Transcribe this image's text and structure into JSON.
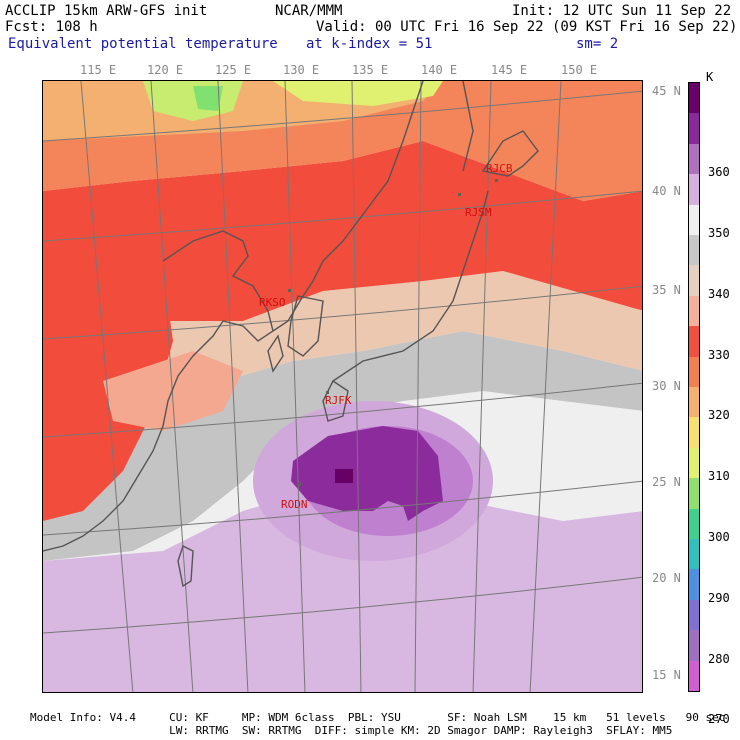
{
  "header": {
    "model": "ACCLIP 15km ARW-GFS init",
    "org": "NCAR/MMM",
    "init": "Init: 12 UTC Sun 11 Sep 22",
    "fcst": "Fcst: 108 h",
    "valid": "Valid: 00 UTC Fri 16 Sep 22 (09 KST Fri 16 Sep 22)",
    "field": "Equivalent potential temperature",
    "level": "at k-index = 51",
    "smooth": "sm= 2"
  },
  "lon_labels": [
    "115 E",
    "120 E",
    "125 E",
    "130 E",
    "135 E",
    "140 E",
    "145 E",
    "150 E"
  ],
  "lat_labels": [
    "45 N",
    "40 N",
    "35 N",
    "30 N",
    "25 N",
    "20 N",
    "15 N"
  ],
  "stations": [
    "RJCB",
    "RJSM",
    "RKSO",
    "RJFK",
    "RODN"
  ],
  "colorbar": {
    "unit": "K",
    "ticks": [
      "360",
      "350",
      "340",
      "330",
      "320",
      "310",
      "300",
      "290",
      "280",
      "270"
    ],
    "colors": [
      "#6a006a",
      "#8a2a9a",
      "#b070c0",
      "#d8b0e0",
      "#f0f0f0",
      "#c8c8c8",
      "#e8d0c0",
      "#f4b09a",
      "#f05040",
      "#f08050",
      "#f4b070",
      "#f8e070",
      "#e0f070",
      "#90e070",
      "#40d090",
      "#30c0c0",
      "#5090e0",
      "#8070d0",
      "#a070c0",
      "#d060d0"
    ]
  },
  "footer": {
    "line1": "Model Info: V4.4     CU: KF     MP: WDM 6class  PBL: YSU       SF: Noah LSM    15 km   51 levels   90 sec",
    "line2": "                     LW: RRTMG  SW: RRTMG  DIFF: simple KM: 2D Smagor DAMP: Rayleigh3  SFLAY: MM5"
  }
}
